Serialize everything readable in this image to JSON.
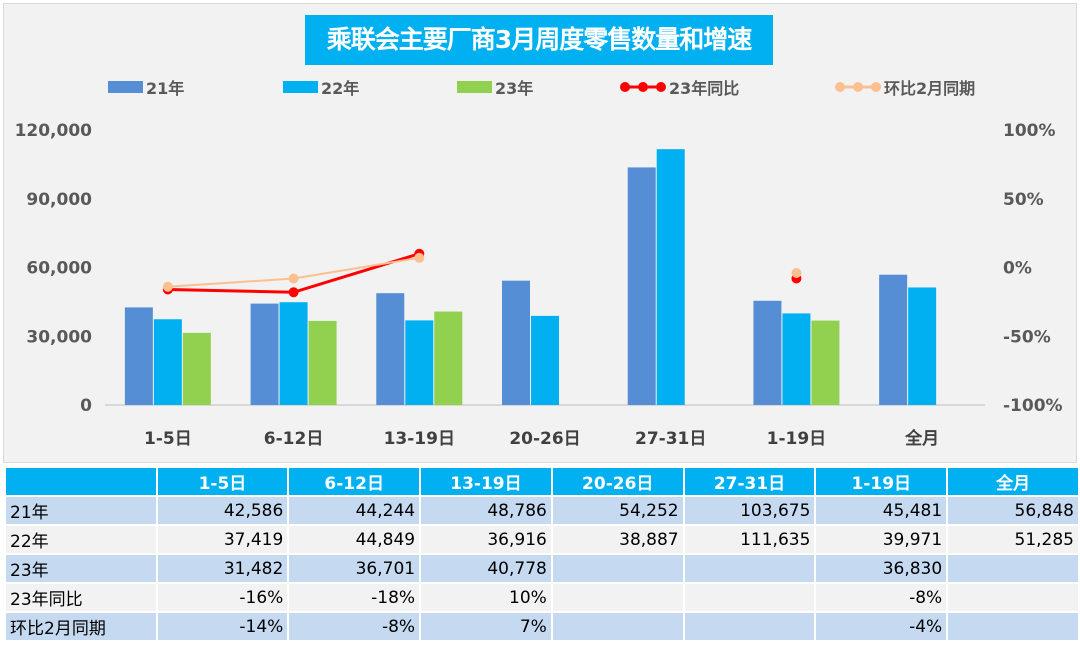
{
  "chart_data": {
    "type": "bar",
    "title": "乘联会主要厂商3月周度零售数量和增速",
    "categories": [
      "1-5日",
      "6-12日",
      "13-19日",
      "20-26日",
      "27-31日",
      "1-19日",
      "全月"
    ],
    "series": [
      {
        "name": "21年",
        "kind": "bar",
        "axis": "left",
        "color": "#558ed5",
        "values": [
          42586,
          44244,
          48786,
          54252,
          103675,
          45481,
          56848
        ]
      },
      {
        "name": "22年",
        "kind": "bar",
        "axis": "left",
        "color": "#00b0f0",
        "values": [
          37419,
          44849,
          36916,
          38887,
          111635,
          39971,
          51285
        ]
      },
      {
        "name": "23年",
        "kind": "bar",
        "axis": "left",
        "color": "#92d050",
        "values": [
          31482,
          36701,
          40778,
          null,
          null,
          36830,
          null
        ]
      },
      {
        "name": "23年同比",
        "kind": "line",
        "axis": "right",
        "color": "#ff0000",
        "values": [
          -16,
          -18,
          10,
          null,
          null,
          -8,
          null
        ]
      },
      {
        "name": "环比2月同期",
        "kind": "line",
        "axis": "right",
        "color": "#fac090",
        "values": [
          -14,
          -8,
          7,
          null,
          null,
          -4,
          null
        ]
      }
    ],
    "left_axis": {
      "ylim": [
        0,
        120000
      ],
      "ticks": [
        "0",
        "30,000",
        "60,000",
        "90,000",
        "120,000"
      ]
    },
    "right_axis": {
      "ylim": [
        -100,
        100
      ],
      "ticks": [
        "-100%",
        "-50%",
        "0%",
        "50%",
        "100%"
      ]
    },
    "legend_placement": "top",
    "grid": false
  },
  "table": {
    "headers": [
      "",
      "1-5日",
      "6-12日",
      "13-19日",
      "20-26日",
      "27-31日",
      "1-19日",
      "全月"
    ],
    "rows": [
      {
        "label": "21年",
        "cells": [
          "42,586",
          "44,244",
          "48,786",
          "54,252",
          "103,675",
          "45,481",
          "56,848"
        ]
      },
      {
        "label": "22年",
        "cells": [
          "37,419",
          "44,849",
          "36,916",
          "38,887",
          "111,635",
          "39,971",
          "51,285"
        ]
      },
      {
        "label": "23年",
        "cells": [
          "31,482",
          "36,701",
          "40,778",
          "",
          "",
          "36,830",
          ""
        ]
      },
      {
        "label": "23年同比",
        "cells": [
          "-16%",
          "-18%",
          "10%",
          "",
          "",
          "-8%",
          ""
        ]
      },
      {
        "label": "环比2月同期",
        "cells": [
          "-14%",
          "-8%",
          "7%",
          "",
          "",
          "-4%",
          ""
        ]
      }
    ]
  }
}
